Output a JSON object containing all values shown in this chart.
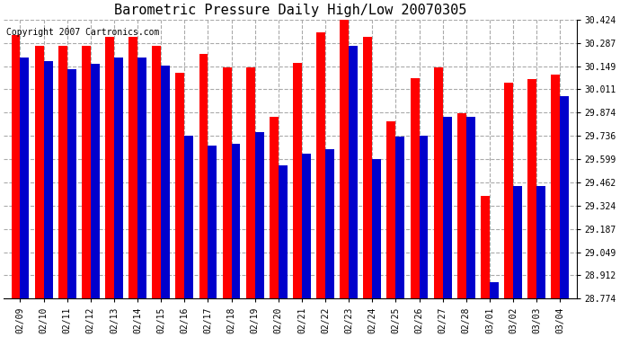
{
  "title": "Barometric Pressure Daily High/Low 20070305",
  "copyright": "Copyright 2007 Cartronics.com",
  "dates": [
    "02/09",
    "02/10",
    "02/11",
    "02/12",
    "02/13",
    "02/14",
    "02/15",
    "02/16",
    "02/17",
    "02/18",
    "02/19",
    "02/20",
    "02/21",
    "02/22",
    "02/23",
    "02/24",
    "02/25",
    "02/26",
    "02/27",
    "02/28",
    "03/01",
    "03/02",
    "03/03",
    "03/04"
  ],
  "highs": [
    30.33,
    30.27,
    30.27,
    30.27,
    30.32,
    30.32,
    30.27,
    30.11,
    30.22,
    30.14,
    30.14,
    29.85,
    30.17,
    30.35,
    30.42,
    30.32,
    29.82,
    30.08,
    30.14,
    29.87,
    29.38,
    30.05,
    30.07,
    30.1
  ],
  "lows": [
    30.2,
    30.18,
    30.13,
    30.16,
    30.2,
    30.2,
    30.15,
    29.74,
    29.68,
    29.69,
    29.76,
    29.56,
    29.63,
    29.66,
    30.27,
    29.6,
    29.73,
    29.74,
    29.85,
    29.85,
    28.87,
    29.44,
    29.44,
    29.97
  ],
  "ymin": 28.774,
  "ymax": 30.424,
  "yticks": [
    28.774,
    28.912,
    29.049,
    29.187,
    29.324,
    29.462,
    29.599,
    29.736,
    29.874,
    30.011,
    30.149,
    30.287,
    30.424
  ],
  "bar_width": 0.38,
  "high_color": "#ff0000",
  "low_color": "#0000cc",
  "bg_color": "#ffffff",
  "plot_bg_color": "#ffffff",
  "grid_color": "#aaaaaa",
  "title_fontsize": 11,
  "tick_fontsize": 7,
  "copyright_fontsize": 7
}
